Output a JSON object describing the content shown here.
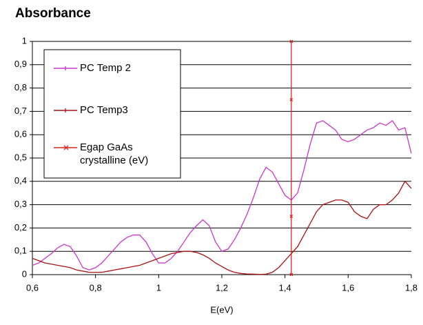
{
  "chart_data": {
    "type": "line",
    "title": "Absorbance",
    "xlabel": "E(eV)",
    "x": [
      0.6,
      0.62,
      0.64,
      0.66,
      0.68,
      0.7,
      0.72,
      0.74,
      0.76,
      0.78,
      0.8,
      0.82,
      0.84,
      0.86,
      0.88,
      0.9,
      0.92,
      0.94,
      0.96,
      0.98,
      1.0,
      1.02,
      1.04,
      1.06,
      1.08,
      1.1,
      1.12,
      1.14,
      1.16,
      1.18,
      1.2,
      1.22,
      1.24,
      1.26,
      1.28,
      1.3,
      1.32,
      1.34,
      1.36,
      1.38,
      1.4,
      1.42,
      1.44,
      1.46,
      1.48,
      1.5,
      1.52,
      1.54,
      1.56,
      1.58,
      1.6,
      1.62,
      1.64,
      1.66,
      1.68,
      1.7,
      1.72,
      1.74,
      1.76,
      1.78,
      1.8
    ],
    "series": [
      {
        "name": "PC Temp 2",
        "color": "#cc33cc",
        "values": [
          0.04,
          0.05,
          0.07,
          0.09,
          0.115,
          0.13,
          0.12,
          0.08,
          0.03,
          0.02,
          0.03,
          0.05,
          0.08,
          0.11,
          0.14,
          0.16,
          0.17,
          0.17,
          0.14,
          0.09,
          0.05,
          0.05,
          0.07,
          0.1,
          0.14,
          0.18,
          0.21,
          0.235,
          0.21,
          0.14,
          0.1,
          0.11,
          0.15,
          0.2,
          0.26,
          0.33,
          0.41,
          0.46,
          0.44,
          0.39,
          0.34,
          0.32,
          0.35,
          0.45,
          0.56,
          0.65,
          0.66,
          0.64,
          0.62,
          0.58,
          0.57,
          0.58,
          0.6,
          0.62,
          0.63,
          0.65,
          0.64,
          0.66,
          0.62,
          0.63,
          0.52
        ]
      },
      {
        "name": "PC Temp3",
        "color": "#aa1111",
        "values": [
          0.07,
          0.06,
          0.05,
          0.045,
          0.04,
          0.035,
          0.03,
          0.02,
          0.015,
          0.01,
          0.01,
          0.01,
          0.015,
          0.02,
          0.025,
          0.03,
          0.035,
          0.04,
          0.05,
          0.06,
          0.07,
          0.08,
          0.09,
          0.095,
          0.1,
          0.1,
          0.095,
          0.085,
          0.07,
          0.05,
          0.035,
          0.02,
          0.01,
          0.005,
          0.003,
          0.002,
          0.001,
          0.002,
          0.01,
          0.03,
          0.06,
          0.09,
          0.12,
          0.17,
          0.22,
          0.27,
          0.3,
          0.31,
          0.32,
          0.32,
          0.31,
          0.27,
          0.25,
          0.24,
          0.28,
          0.3,
          0.3,
          0.32,
          0.35,
          0.4,
          0.37
        ]
      },
      {
        "name": "Egap GaAs crystalline (eV)",
        "color": "#dd2222",
        "x": [
          1.42,
          1.42,
          1.42,
          1.42
        ],
        "values": [
          0,
          0.25,
          0.75,
          1
        ]
      }
    ],
    "xlim": [
      0.6,
      1.8
    ],
    "xticks": [
      {
        "value": 0.6,
        "label": "0,6"
      },
      {
        "value": 0.8,
        "label": "0,8"
      },
      {
        "value": 1,
        "label": "1"
      },
      {
        "value": 1.2,
        "label": "1,2"
      },
      {
        "value": 1.4,
        "label": "1,4"
      },
      {
        "value": 1.6,
        "label": "1,6"
      },
      {
        "value": 1.8,
        "label": "1,8"
      }
    ],
    "ylim": [
      0,
      1
    ],
    "yticks": [
      0,
      {
        "value": 0.1,
        "label": "0,1"
      },
      {
        "value": 0.2,
        "label": "0,2"
      },
      {
        "value": 0.3,
        "label": "0,3"
      },
      {
        "value": 0.4,
        "label": "0,4"
      },
      {
        "value": 0.5,
        "label": "0,5"
      },
      {
        "value": 0.6,
        "label": "0,6"
      },
      {
        "value": 0.7,
        "label": "0,7"
      },
      {
        "value": 0.8,
        "label": "0,8"
      },
      {
        "value": 0.9,
        "label": "0,9"
      },
      1
    ],
    "grid": true
  }
}
